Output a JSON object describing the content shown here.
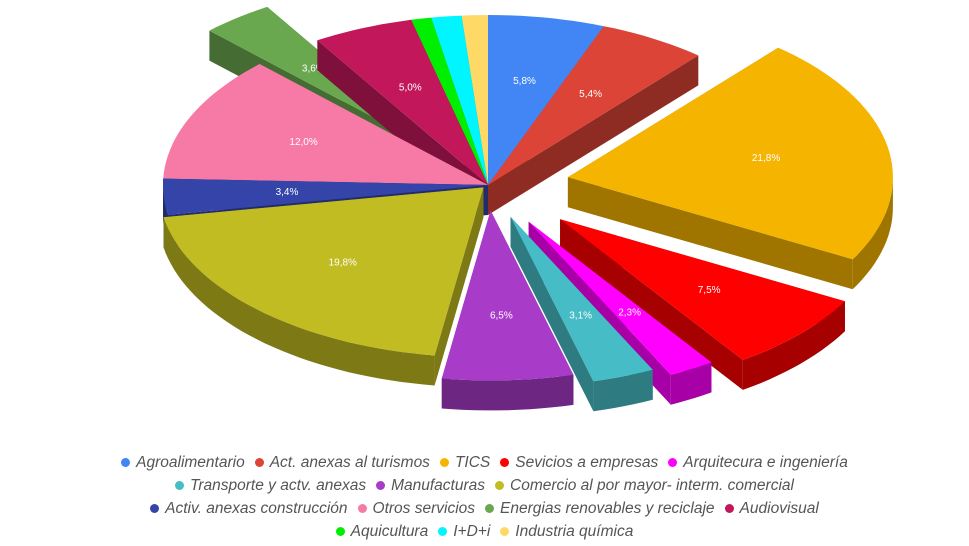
{
  "chart_data": {
    "type": "pie3d",
    "categories": [
      "Agroalimentario",
      "Act. anexas al turismos",
      "TICS",
      "Sevicios a empresas",
      "Arquitecura e ingeniería",
      "Transporte y actv. anexas",
      "Manufacturas",
      "Comercio al por mayor- interm. comercial",
      "Activ. anexas construcción",
      "Otros servicios",
      "Energias renovables y reciclaje",
      "Audiovisual",
      "Aquicultura",
      "I+D+i",
      "Industria química"
    ],
    "values": [
      5.8,
      5.4,
      21.8,
      7.5,
      2.3,
      3.1,
      6.5,
      19.8,
      3.4,
      12.0,
      3.6,
      5.0,
      1.0,
      1.5,
      1.3
    ],
    "value_labels": [
      "5,8%",
      "5,4%",
      "21,8%",
      "7,5%",
      "2,3%",
      "3,1%",
      "6,5%",
      "19,8%",
      "3,4%",
      "12,0%",
      "3,6%",
      "5,0%",
      null,
      null,
      null
    ],
    "colors": [
      "#4285f4",
      "#db4437",
      "#f4b400",
      "#ff0000",
      "#ff00ff",
      "#46bdc6",
      "#a93bc9",
      "#c0bc22",
      "#3544a8",
      "#f77aa6",
      "#6aa84f",
      "#c2185b",
      "#00ee00",
      "#00f5ff",
      "#ffd966"
    ],
    "legend": "bottom"
  }
}
